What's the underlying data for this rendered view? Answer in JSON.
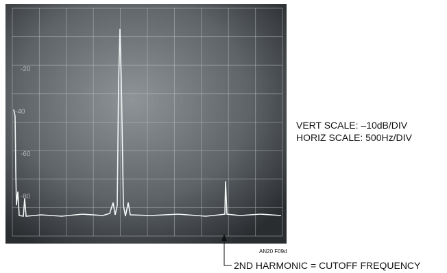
{
  "screen": {
    "labels": [
      "-20",
      "-40",
      "-60",
      "-80"
    ]
  },
  "annotations": {
    "vert_scale": "VERT SCALE: –10dB/DIV",
    "horiz_scale": "HORIZ SCALE: 500Hz/DIV",
    "figure_id": "AN20 F09d",
    "arrow_label": "2ND HARMONIC = CUTOFF FREQUENCY"
  }
}
